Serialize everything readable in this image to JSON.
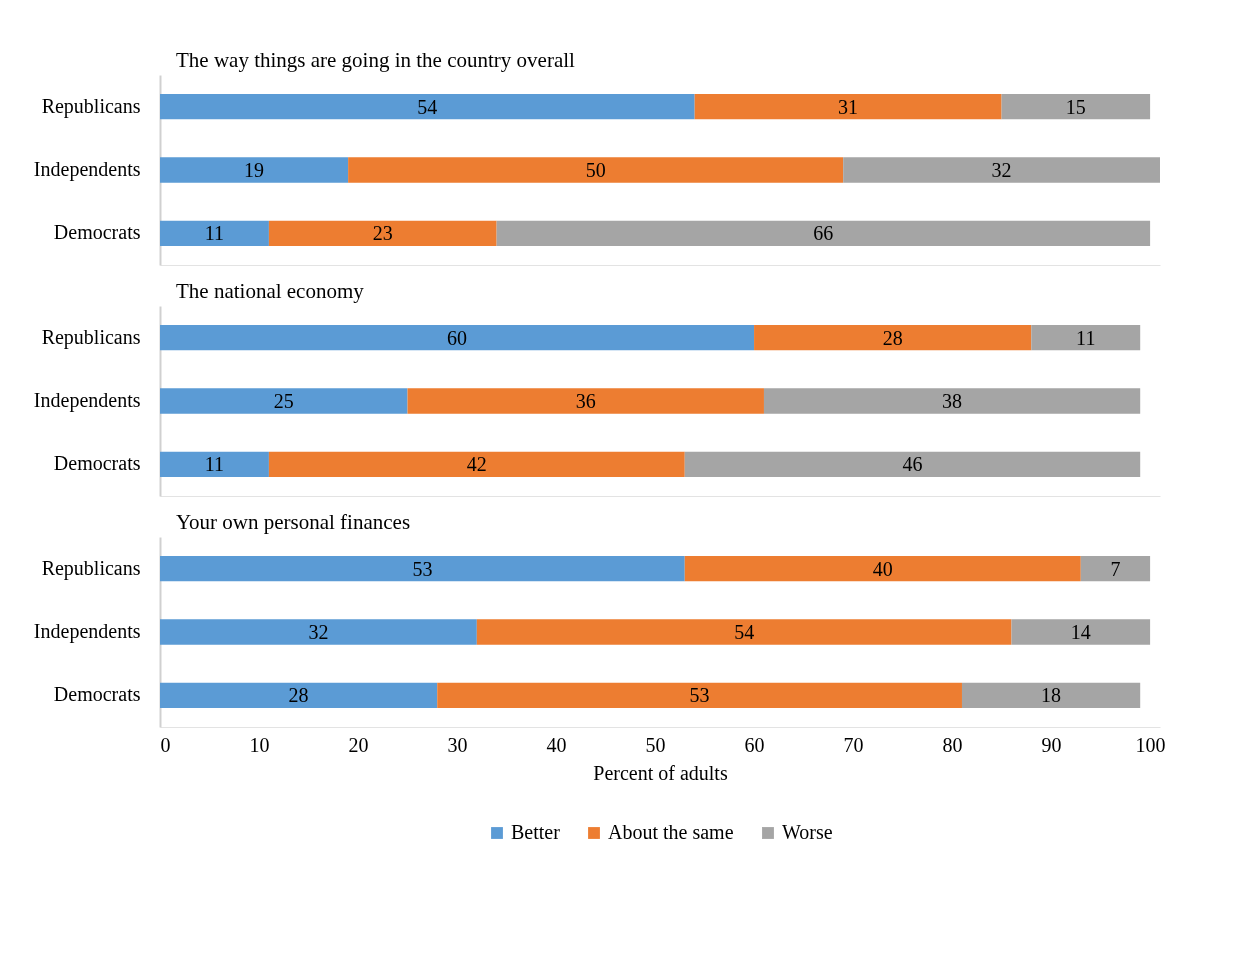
{
  "chart_data": [
    {
      "type": "bar",
      "orientation": "horizontal",
      "stacked": true,
      "data_labels": true,
      "title": "The way things are going in the country overall",
      "categories": [
        "Republicans",
        "Independents",
        "Democrats"
      ],
      "series": [
        {
          "color": "#5b9bd5",
          "values": [
            54,
            19,
            11
          ]
        },
        {
          "color": "#ed7d31",
          "values": [
            31,
            50,
            23
          ]
        },
        {
          "color": "#a5a5a5",
          "values": [
            15,
            32,
            66
          ]
        }
      ],
      "xlim": [
        0,
        101
      ],
      "xticks": [
        0,
        10,
        20,
        30,
        40,
        50,
        60,
        70,
        80,
        90,
        100
      ],
      "tick_labels": "y",
      "grid": false
    },
    {
      "type": "bar",
      "orientation": "horizontal",
      "stacked": true,
      "data_labels": true,
      "title": "The national economy",
      "categories": [
        "Republicans",
        "Independents",
        "Democrats"
      ],
      "series": [
        {
          "color": "#5b9bd5",
          "values": [
            60,
            25,
            11
          ]
        },
        {
          "color": "#ed7d31",
          "values": [
            28,
            36,
            42
          ]
        },
        {
          "color": "#a5a5a5",
          "values": [
            11,
            38,
            46
          ]
        }
      ],
      "xlim": [
        0,
        101
      ],
      "xticks": [
        0,
        10,
        20,
        30,
        40,
        50,
        60,
        70,
        80,
        90,
        100
      ],
      "tick_labels": "y",
      "grid": false
    },
    {
      "type": "bar",
      "orientation": "horizontal",
      "stacked": true,
      "data_labels": true,
      "title": "Your own personal finances",
      "categories": [
        "Republicans",
        "Independents",
        "Democrats"
      ],
      "series": [
        {
          "name": "Better",
          "color": "#5b9bd5",
          "values": [
            53,
            32,
            28
          ]
        },
        {
          "name": "About the same",
          "color": "#ed7d31",
          "values": [
            40,
            54,
            53
          ]
        },
        {
          "name": "Worse",
          "color": "#a5a5a5",
          "values": [
            7,
            14,
            18
          ]
        }
      ],
      "xlim": [
        0,
        101
      ],
      "xticks": [
        0,
        10,
        20,
        30,
        40,
        50,
        60,
        70,
        80,
        90,
        100
      ],
      "xlabel": "Percent of adults",
      "legend": "bottom",
      "grid": false
    }
  ]
}
